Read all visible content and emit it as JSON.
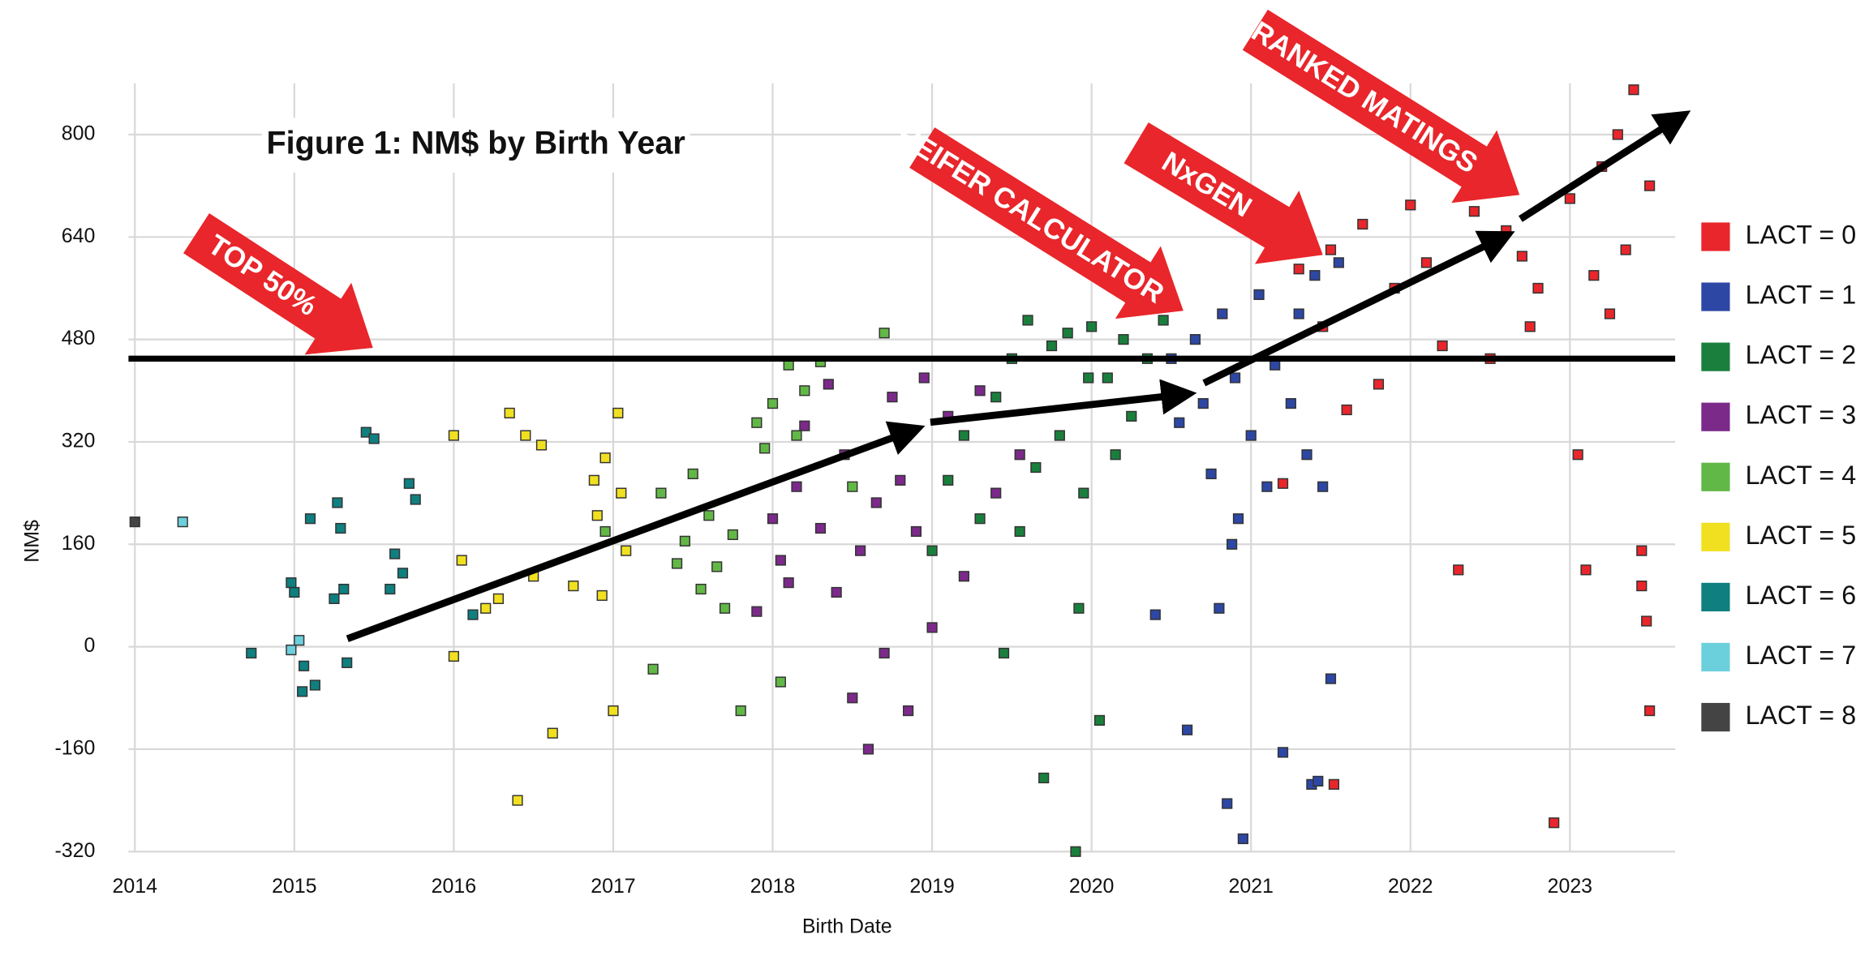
{
  "chart_data": {
    "type": "scatter",
    "title": "Figure 1: NM$ by Birth Year",
    "x_label": "Birth Date",
    "y_label": "NM$",
    "xlim": [
      2013.96,
      2023.66
    ],
    "xticks": [
      2014,
      2015,
      2016,
      2017,
      2018,
      2019,
      2020,
      2021,
      2022,
      2023
    ],
    "ylim": [
      -320,
      880
    ],
    "yticks": [
      -320,
      -160,
      0,
      160,
      320,
      480,
      640,
      800
    ],
    "grid": true,
    "reference_line": 450,
    "annotations": [
      "TOP 50%",
      "HEIFER CALCULATOR",
      "NxGEN",
      "RANKED MATINGS"
    ],
    "legend": "right",
    "series": [
      {
        "name": "LACT = 0",
        "color": "#e8262b",
        "x": [
          2021.2,
          2021.3,
          2021.45,
          2021.5,
          2021.6,
          2021.7,
          2021.8,
          2021.9,
          2022.0,
          2022.1,
          2022.2,
          2022.3,
          2022.4,
          2022.5,
          2022.6,
          2022.7,
          2022.8,
          2022.9,
          2023.0,
          2023.05,
          2023.1,
          2023.15,
          2023.2,
          2023.25,
          2023.3,
          2023.35,
          2023.4,
          2023.45,
          2023.5,
          2022.75,
          2023.45,
          2023.48,
          2023.5,
          2021.52
        ],
        "values": [
          255,
          590,
          500,
          620,
          370,
          660,
          410,
          560,
          690,
          600,
          470,
          120,
          680,
          450,
          650,
          610,
          560,
          -275,
          700,
          300,
          120,
          580,
          750,
          520,
          800,
          620,
          870,
          150,
          720,
          500,
          95,
          40,
          -100,
          -215
        ]
      },
      {
        "name": "LACT = 1",
        "color": "#2d47a5",
        "x": [
          2020.4,
          2020.5,
          2020.55,
          2020.6,
          2020.65,
          2020.7,
          2020.75,
          2020.8,
          2020.82,
          2020.85,
          2020.9,
          2020.95,
          2021.0,
          2021.05,
          2021.1,
          2021.15,
          2021.2,
          2021.25,
          2021.3,
          2021.35,
          2021.4,
          2021.45,
          2021.5,
          2021.55,
          2020.88,
          2020.92,
          2021.38,
          2021.42
        ],
        "values": [
          50,
          450,
          350,
          -130,
          480,
          380,
          270,
          60,
          520,
          -245,
          420,
          -300,
          330,
          550,
          250,
          440,
          -165,
          380,
          520,
          300,
          580,
          250,
          -50,
          600,
          160,
          200,
          -215,
          -210
        ]
      },
      {
        "name": "LACT = 2",
        "color": "#1a7f3d",
        "x": [
          2019.0,
          2019.1,
          2019.2,
          2019.3,
          2019.4,
          2019.45,
          2019.5,
          2019.55,
          2019.6,
          2019.65,
          2019.7,
          2019.75,
          2019.8,
          2019.85,
          2019.9,
          2019.95,
          2020.0,
          2020.05,
          2020.1,
          2020.15,
          2020.2,
          2020.25,
          2020.35,
          2020.45,
          2019.92,
          2019.98
        ],
        "values": [
          150,
          260,
          330,
          200,
          390,
          -10,
          450,
          180,
          510,
          280,
          -205,
          470,
          330,
          490,
          -320,
          240,
          500,
          -115,
          420,
          300,
          480,
          360,
          450,
          510,
          60,
          420
        ]
      },
      {
        "name": "LACT = 3",
        "color": "#7b2a8a",
        "x": [
          2017.9,
          2018.0,
          2018.05,
          2018.1,
          2018.15,
          2018.2,
          2018.3,
          2018.35,
          2018.4,
          2018.45,
          2018.5,
          2018.55,
          2018.6,
          2018.65,
          2018.7,
          2018.75,
          2018.8,
          2018.85,
          2018.9,
          2018.95,
          2019.0,
          2019.1,
          2019.2,
          2019.3,
          2019.4,
          2019.55
        ],
        "values": [
          55,
          200,
          135,
          100,
          250,
          345,
          185,
          410,
          85,
          300,
          -80,
          150,
          -160,
          225,
          -10,
          390,
          260,
          -100,
          180,
          420,
          30,
          360,
          110,
          400,
          240,
          300
        ]
      },
      {
        "name": "LACT = 4",
        "color": "#62b846",
        "x": [
          2016.95,
          2017.25,
          2017.3,
          2017.4,
          2017.45,
          2017.5,
          2017.55,
          2017.6,
          2017.65,
          2017.7,
          2017.75,
          2017.8,
          2017.9,
          2017.95,
          2018.0,
          2018.05,
          2018.1,
          2018.15,
          2018.2,
          2018.3,
          2018.5,
          2018.7
        ],
        "values": [
          180,
          -35,
          240,
          130,
          165,
          270,
          90,
          205,
          125,
          60,
          175,
          -100,
          350,
          310,
          380,
          -55,
          440,
          330,
          400,
          445,
          250,
          490
        ]
      },
      {
        "name": "LACT = 5",
        "color": "#f0e020",
        "x": [
          2016.0,
          2016.0,
          2016.05,
          2016.2,
          2016.28,
          2016.35,
          2016.4,
          2016.45,
          2016.5,
          2016.55,
          2016.62,
          2016.75,
          2016.88,
          2016.9,
          2016.95,
          2017.0,
          2017.03,
          2017.05,
          2017.08,
          2016.93
        ],
        "values": [
          330,
          -15,
          135,
          60,
          75,
          365,
          -240,
          330,
          110,
          315,
          -135,
          95,
          260,
          205,
          295,
          -100,
          365,
          240,
          150,
          80
        ]
      },
      {
        "name": "LACT = 6",
        "color": "#0f7f7f",
        "x": [
          2014.73,
          2014.98,
          2015.0,
          2015.05,
          2015.06,
          2015.1,
          2015.13,
          2015.25,
          2015.27,
          2015.29,
          2015.31,
          2015.33,
          2015.45,
          2015.5,
          2015.6,
          2015.63,
          2015.68,
          2015.72,
          2015.76,
          2016.12
        ],
        "values": [
          -10,
          100,
          85,
          -70,
          -30,
          200,
          -60,
          75,
          225,
          185,
          90,
          -25,
          335,
          325,
          90,
          145,
          115,
          255,
          230,
          50
        ]
      },
      {
        "name": "LACT = 7",
        "color": "#6ccfdc",
        "x": [
          2014.3,
          2014.98,
          2015.03
        ],
        "values": [
          195,
          -5,
          10
        ]
      },
      {
        "name": "LACT = 8",
        "color": "#444444",
        "x": [
          2014.0
        ],
        "values": [
          195
        ]
      }
    ]
  }
}
